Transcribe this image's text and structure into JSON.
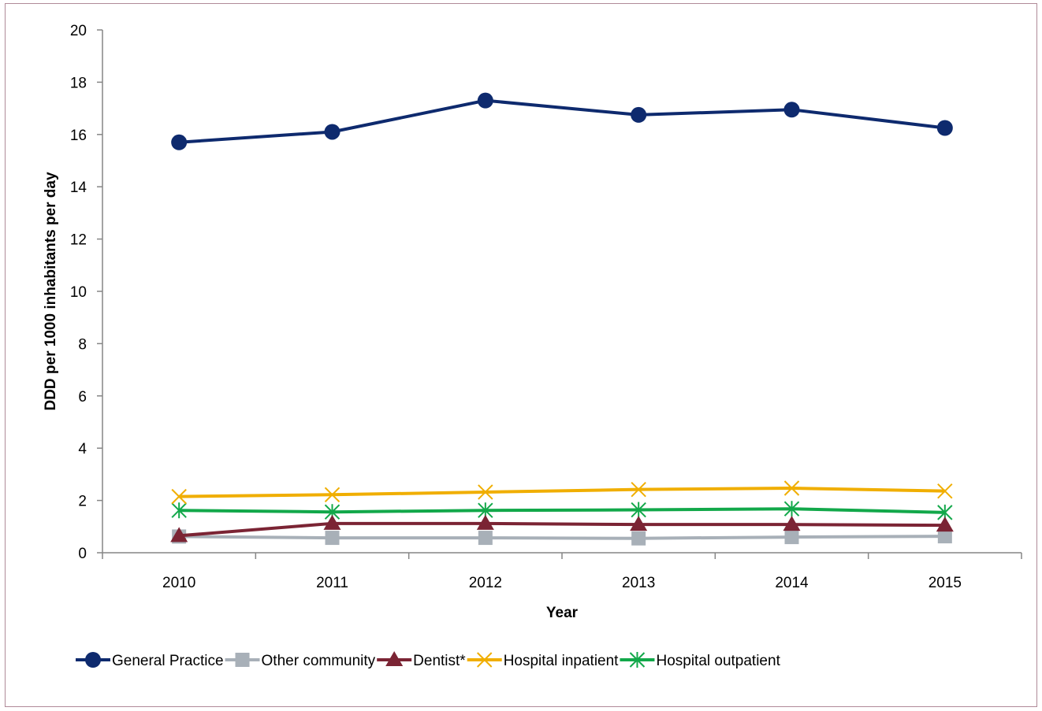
{
  "chart_data": {
    "type": "line",
    "title": "",
    "xlabel": "Year",
    "ylabel": "DDD per 1000 inhabitants per day",
    "ylim": [
      0,
      20
    ],
    "yticks": [
      0,
      2,
      4,
      6,
      8,
      10,
      12,
      14,
      16,
      18,
      20
    ],
    "categories": [
      "2010",
      "2011",
      "2012",
      "2013",
      "2014",
      "2015"
    ],
    "grid": false,
    "legend_position": "bottom",
    "series": [
      {
        "name": "General Practice",
        "color": "#0e2a6e",
        "marker": "circle",
        "values": [
          15.7,
          16.1,
          17.3,
          16.75,
          16.95,
          16.25
        ]
      },
      {
        "name": "Other community",
        "color": "#a8b0b8",
        "marker": "square",
        "values": [
          0.62,
          0.57,
          0.57,
          0.55,
          0.6,
          0.63
        ]
      },
      {
        "name": "Dentist*",
        "color": "#7b2434",
        "marker": "triangle",
        "values": [
          0.65,
          1.12,
          1.12,
          1.08,
          1.08,
          1.05
        ]
      },
      {
        "name": "Hospital inpatient",
        "color": "#f0ae00",
        "marker": "x",
        "values": [
          2.15,
          2.22,
          2.32,
          2.42,
          2.47,
          2.36
        ]
      },
      {
        "name": "Hospital outpatient",
        "color": "#12a84a",
        "marker": "star",
        "values": [
          1.62,
          1.56,
          1.62,
          1.64,
          1.68,
          1.54
        ]
      }
    ]
  }
}
